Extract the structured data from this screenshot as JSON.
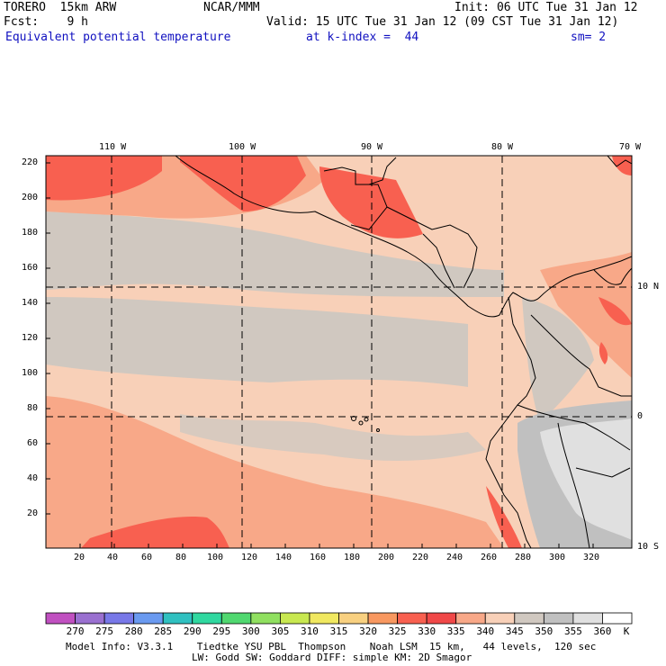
{
  "header": {
    "model": "TORERO  15km ARW",
    "org": "NCAR/MMM",
    "init": "Init: 06 UTC Tue 31 Jan 12",
    "fcst": "Fcst:    9 h",
    "valid": "Valid: 15 UTC Tue 31 Jan 12 (09 CST Tue 31 Jan 12)",
    "field": "Equivalent potential temperature",
    "level": "at k-index =  44",
    "smooth": "sm= 2"
  },
  "map": {
    "top_lon_labels": [
      "110 W",
      "100 W",
      "90 W",
      "80 W",
      "70 W"
    ],
    "right_lat_labels": [
      "10 N",
      "0",
      "10 S"
    ],
    "left_y_ticks": [
      "220",
      "200",
      "180",
      "160",
      "140",
      "120",
      "100",
      "80",
      "60",
      "40",
      "20"
    ],
    "bottom_x_ticks": [
      "20",
      "40",
      "60",
      "80",
      "100",
      "120",
      "140",
      "160",
      "180",
      "200",
      "220",
      "240",
      "260",
      "280",
      "300",
      "320"
    ]
  },
  "colorbar": {
    "labels": [
      "270",
      "275",
      "280",
      "285",
      "290",
      "295",
      "300",
      "305",
      "310",
      "315",
      "320",
      "325",
      "330",
      "335",
      "340",
      "345",
      "350",
      "355",
      "360"
    ],
    "unit": "K",
    "colors": [
      "#c050c0",
      "#9a70d0",
      "#7878e8",
      "#6a9af0",
      "#30c0c0",
      "#30d8a0",
      "#50d870",
      "#90e060",
      "#c8e850",
      "#f0e860",
      "#f8d080",
      "#f89860",
      "#f86050",
      "#f04848",
      "#f8a888",
      "#f8d0b8",
      "#d0c8c0",
      "#c0c0c0",
      "#e0e0e0",
      "#ffffff"
    ]
  },
  "footer": {
    "line1": "Model Info: V3.3.1    Tiedtke YSU PBL  Thompson    Noah LSM  15 km,   44 levels,  120 sec",
    "line2": "LW: Godd SW: Goddard DIFF: simple KM: 2D Smagor"
  }
}
